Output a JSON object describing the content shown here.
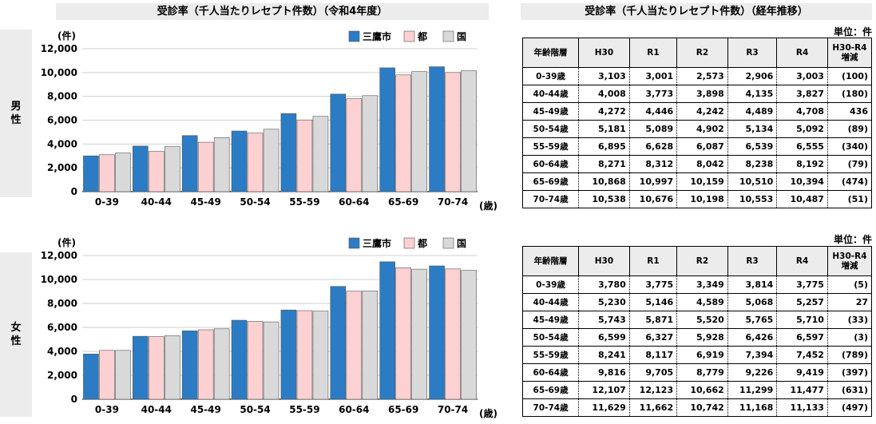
{
  "header": {
    "left_title": "受診率（千人当たりレセプト件数）（令和4年度）",
    "right_title": "受診率（千人当たりレセプト件数）（経年推移）"
  },
  "sections": {
    "male": {
      "line1": "男",
      "line2": "性"
    },
    "female": {
      "line1": "女",
      "line2": "性"
    }
  },
  "colors": {
    "mitaka": "#2b7cc4",
    "to": "#fdd0d2",
    "kuni": "#d9d9d9"
  },
  "chart_data": [
    {
      "type": "bar",
      "categories": [
        "0-39",
        "40-44",
        "45-49",
        "50-54",
        "55-59",
        "60-64",
        "65-69",
        "70-74"
      ],
      "series": [
        {
          "name": "三鷹市",
          "values": [
            3003,
            3827,
            4708,
            5092,
            6555,
            8192,
            10394,
            10487
          ]
        },
        {
          "name": "都",
          "values": [
            3100,
            3380,
            4150,
            4920,
            6020,
            7800,
            9800,
            10000
          ]
        },
        {
          "name": "国",
          "values": [
            3250,
            3780,
            4540,
            5240,
            6320,
            8060,
            10080,
            10150
          ]
        }
      ],
      "ylabel": "(件)",
      "xunit": "(歳)",
      "ylim": [
        0,
        12000
      ],
      "yticks": [
        "0",
        "2,000",
        "4,000",
        "6,000",
        "8,000",
        "10,000",
        "12,000"
      ],
      "legend": "top-right",
      "grid": true
    },
    {
      "type": "bar",
      "categories": [
        "0-39",
        "40-44",
        "45-49",
        "50-54",
        "55-59",
        "60-64",
        "65-69",
        "70-74"
      ],
      "series": [
        {
          "name": "三鷹市",
          "values": [
            3775,
            5257,
            5710,
            6597,
            7452,
            9419,
            11477,
            11133
          ]
        },
        {
          "name": "都",
          "values": [
            4080,
            5230,
            5800,
            6500,
            7400,
            9020,
            10980,
            10880
          ]
        },
        {
          "name": "国",
          "values": [
            4080,
            5300,
            5880,
            6460,
            7360,
            9040,
            10860,
            10760
          ]
        }
      ],
      "ylabel": "(件)",
      "xunit": "(歳)",
      "ylim": [
        0,
        12000
      ],
      "yticks": [
        "0",
        "2,000",
        "4,000",
        "6,000",
        "8,000",
        "10,000",
        "12,000"
      ],
      "legend": "top-right",
      "grid": true
    }
  ],
  "tables": {
    "unit": "単位：件",
    "headers": [
      "年齢階層",
      "H30",
      "R1",
      "R2",
      "R3",
      "R4",
      "H30-R4\n増減"
    ],
    "male_rows": [
      [
        "0-39歳",
        "3,103",
        "3,001",
        "2,573",
        "2,906",
        "3,003",
        "(100)"
      ],
      [
        "40-44歳",
        "4,008",
        "3,773",
        "3,898",
        "4,135",
        "3,827",
        "(180)"
      ],
      [
        "45-49歳",
        "4,272",
        "4,446",
        "4,242",
        "4,489",
        "4,708",
        "436"
      ],
      [
        "50-54歳",
        "5,181",
        "5,089",
        "4,902",
        "5,134",
        "5,092",
        "(89)"
      ],
      [
        "55-59歳",
        "6,895",
        "6,628",
        "6,087",
        "6,539",
        "6,555",
        "(340)"
      ],
      [
        "60-64歳",
        "8,271",
        "8,312",
        "8,042",
        "8,238",
        "8,192",
        "(79)"
      ],
      [
        "65-69歳",
        "10,868",
        "10,997",
        "10,159",
        "10,510",
        "10,394",
        "(474)"
      ],
      [
        "70-74歳",
        "10,538",
        "10,676",
        "10,198",
        "10,553",
        "10,487",
        "(51)"
      ]
    ],
    "female_rows": [
      [
        "0-39歳",
        "3,780",
        "3,775",
        "3,349",
        "3,814",
        "3,775",
        "(5)"
      ],
      [
        "40-44歳",
        "5,230",
        "5,146",
        "4,589",
        "5,068",
        "5,257",
        "27"
      ],
      [
        "45-49歳",
        "5,743",
        "5,871",
        "5,520",
        "5,765",
        "5,710",
        "(33)"
      ],
      [
        "50-54歳",
        "6,599",
        "6,327",
        "5,928",
        "6,426",
        "6,597",
        "(3)"
      ],
      [
        "55-59歳",
        "8,241",
        "8,117",
        "6,919",
        "7,394",
        "7,452",
        "(789)"
      ],
      [
        "60-64歳",
        "9,816",
        "9,705",
        "8,779",
        "9,226",
        "9,419",
        "(397)"
      ],
      [
        "65-69歳",
        "12,107",
        "12,123",
        "10,662",
        "11,299",
        "11,477",
        "(631)"
      ],
      [
        "70-74歳",
        "11,629",
        "11,662",
        "10,742",
        "11,168",
        "11,133",
        "(497)"
      ]
    ]
  }
}
